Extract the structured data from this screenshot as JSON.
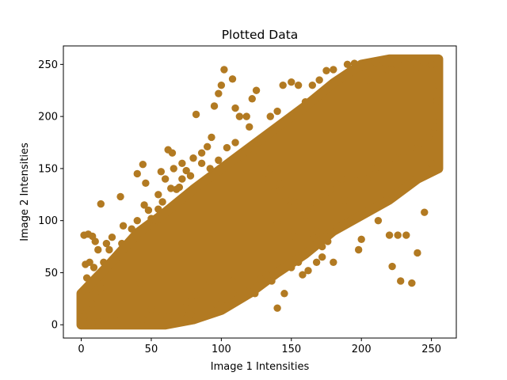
{
  "chart_data": {
    "type": "scatter",
    "title": "Plotted Data",
    "xlabel": "Image 1 Intensities",
    "ylabel": "Image 2 Intensities",
    "xlim": [
      -12.75,
      267.75
    ],
    "ylim": [
      -12.75,
      267.75
    ],
    "xticks": [
      0,
      50,
      100,
      150,
      200,
      250
    ],
    "yticks": [
      0,
      50,
      100,
      150,
      200,
      250
    ],
    "grid": false,
    "legend": "none",
    "marker_color": "#b27a22",
    "series": [
      {
        "points": [
          [
            2,
            86
          ],
          [
            5,
            87
          ],
          [
            8,
            85
          ],
          [
            10,
            80
          ],
          [
            14,
            116
          ],
          [
            12,
            72
          ],
          [
            3,
            58
          ],
          [
            6,
            60
          ],
          [
            9,
            55
          ],
          [
            4,
            45
          ],
          [
            16,
            60
          ],
          [
            20,
            72
          ],
          [
            18,
            78
          ],
          [
            22,
            84
          ],
          [
            29,
            78
          ],
          [
            28,
            123
          ],
          [
            30,
            95
          ],
          [
            36,
            92
          ],
          [
            40,
            145
          ],
          [
            44,
            154
          ],
          [
            46,
            136
          ],
          [
            48,
            110
          ],
          [
            52,
            94
          ],
          [
            55,
            111
          ],
          [
            57,
            147
          ],
          [
            58,
            118
          ],
          [
            62,
            168
          ],
          [
            65,
            165
          ],
          [
            64,
            131
          ],
          [
            68,
            130
          ],
          [
            70,
            132
          ],
          [
            72,
            140
          ],
          [
            75,
            148
          ],
          [
            78,
            143
          ],
          [
            82,
            202
          ],
          [
            86,
            155
          ],
          [
            90,
            171
          ],
          [
            93,
            180
          ],
          [
            95,
            210
          ],
          [
            98,
            222
          ],
          [
            100,
            230
          ],
          [
            102,
            245
          ],
          [
            108,
            236
          ],
          [
            110,
            208
          ],
          [
            113,
            200
          ],
          [
            118,
            200
          ],
          [
            122,
            217
          ],
          [
            125,
            225
          ],
          [
            120,
            190
          ],
          [
            128,
            178
          ],
          [
            132,
            181
          ],
          [
            135,
            200
          ],
          [
            140,
            205
          ],
          [
            144,
            230
          ],
          [
            150,
            233
          ],
          [
            155,
            230
          ],
          [
            160,
            214
          ],
          [
            165,
            230
          ],
          [
            170,
            235
          ],
          [
            175,
            244
          ],
          [
            180,
            245
          ],
          [
            185,
            237
          ],
          [
            190,
            250
          ],
          [
            195,
            251
          ],
          [
            200,
            248
          ],
          [
            140,
            98
          ],
          [
            148,
            95
          ],
          [
            152,
            85
          ],
          [
            158,
            70
          ],
          [
            165,
            88
          ],
          [
            168,
            90
          ],
          [
            172,
            65
          ],
          [
            176,
            80
          ],
          [
            188,
            120
          ],
          [
            192,
            100
          ],
          [
            198,
            72
          ],
          [
            200,
            82
          ],
          [
            205,
            108
          ],
          [
            212,
            100
          ],
          [
            215,
            118
          ],
          [
            218,
            120
          ],
          [
            220,
            86
          ],
          [
            226,
            86
          ],
          [
            228,
            42
          ],
          [
            232,
            86
          ],
          [
            236,
            40
          ],
          [
            240,
            69
          ],
          [
            245,
            108
          ],
          [
            222,
            56
          ],
          [
            244,
            145
          ],
          [
            250,
            155
          ],
          [
            42,
            40
          ],
          [
            44,
            5
          ],
          [
            50,
            15
          ],
          [
            58,
            10
          ],
          [
            62,
            8
          ],
          [
            72,
            12
          ],
          [
            75,
            22
          ],
          [
            78,
            10
          ],
          [
            82,
            28
          ],
          [
            88,
            38
          ],
          [
            92,
            42
          ],
          [
            96,
            20
          ],
          [
            100,
            28
          ],
          [
            104,
            18
          ],
          [
            108,
            42
          ],
          [
            112,
            34
          ],
          [
            120,
            38
          ],
          [
            124,
            30
          ],
          [
            128,
            44
          ],
          [
            132,
            48
          ],
          [
            136,
            42
          ],
          [
            140,
            16
          ],
          [
            145,
            30
          ],
          [
            150,
            55
          ],
          [
            155,
            60
          ],
          [
            158,
            48
          ],
          [
            162,
            52
          ],
          [
            168,
            60
          ],
          [
            172,
            75
          ],
          [
            178,
            90
          ],
          [
            180,
            60
          ],
          [
            24,
            10
          ],
          [
            18,
            5
          ],
          [
            12,
            3
          ],
          [
            6,
            2
          ],
          [
            2,
            8
          ],
          [
            4,
            15
          ],
          [
            8,
            20
          ],
          [
            10,
            30
          ],
          [
            14,
            35
          ],
          [
            4,
            28
          ],
          [
            40,
            100
          ],
          [
            45,
            115
          ],
          [
            50,
            102
          ],
          [
            55,
            125
          ],
          [
            60,
            140
          ],
          [
            66,
            150
          ],
          [
            72,
            155
          ],
          [
            80,
            160
          ],
          [
            86,
            165
          ],
          [
            92,
            150
          ],
          [
            98,
            158
          ],
          [
            104,
            170
          ],
          [
            110,
            175
          ],
          [
            116,
            160
          ],
          [
            124,
            168
          ],
          [
            130,
            140
          ],
          [
            135,
            150
          ],
          [
            138,
            128
          ],
          [
            142,
            135
          ],
          [
            146,
            120
          ],
          [
            152,
            118
          ],
          [
            156,
            110
          ],
          [
            160,
            105
          ],
          [
            164,
            112
          ],
          [
            170,
            118
          ],
          [
            174,
            125
          ],
          [
            178,
            130
          ],
          [
            182,
            135
          ],
          [
            186,
            140
          ],
          [
            196,
            138
          ],
          [
            204,
            140
          ],
          [
            210,
            150
          ],
          [
            216,
            155
          ],
          [
            224,
            160
          ],
          [
            230,
            165
          ],
          [
            236,
            170
          ],
          [
            242,
            175
          ],
          [
            248,
            180
          ],
          [
            252,
            190
          ],
          [
            255,
            200
          ],
          [
            254,
            215
          ],
          [
            255,
            230
          ],
          [
            255,
            245
          ],
          [
            255,
            255
          ],
          [
            250,
            250
          ],
          [
            245,
            252
          ],
          [
            240,
            248
          ],
          [
            235,
            240
          ],
          [
            230,
            255
          ],
          [
            225,
            250
          ],
          [
            220,
            245
          ],
          [
            215,
            240
          ],
          [
            210,
            252
          ],
          [
            205,
            235
          ]
        ],
        "dense_band": {
          "upper": [
            [
              0,
              30
            ],
            [
              20,
              58
            ],
            [
              40,
              88
            ],
            [
              60,
              108
            ],
            [
              80,
              130
            ],
            [
              100,
              150
            ],
            [
              120,
              170
            ],
            [
              140,
              190
            ],
            [
              160,
              210
            ],
            [
              180,
              232
            ],
            [
              200,
              250
            ],
            [
              220,
              255
            ],
            [
              255,
              255
            ]
          ],
          "lower": [
            [
              255,
              150
            ],
            [
              240,
              140
            ],
            [
              220,
              120
            ],
            [
              200,
              105
            ],
            [
              180,
              90
            ],
            [
              160,
              68
            ],
            [
              140,
              50
            ],
            [
              120,
              30
            ],
            [
              100,
              14
            ],
            [
              80,
              5
            ],
            [
              60,
              0
            ],
            [
              40,
              0
            ],
            [
              20,
              0
            ],
            [
              0,
              0
            ]
          ]
        }
      }
    ]
  }
}
